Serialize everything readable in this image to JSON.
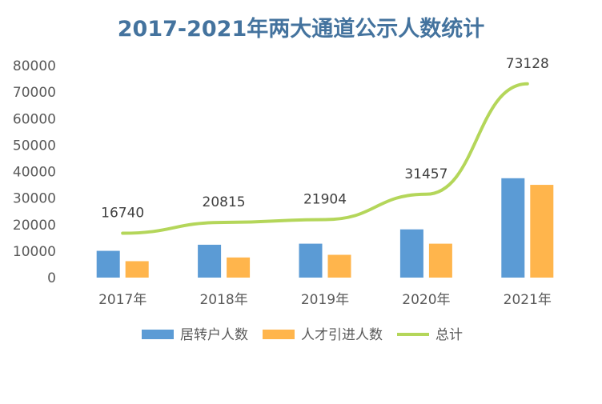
{
  "colors": {
    "title": "#44739e",
    "bar1": "#5b9bd5",
    "bar2": "#ffb54c",
    "line": "#b4d65a"
  },
  "chart_data": {
    "type": "bar",
    "title": "2017-2021年两大通道公示人数统计",
    "categories": [
      "2017年",
      "2018年",
      "2019年",
      "2020年",
      "2021年"
    ],
    "ylim": [
      0,
      80000
    ],
    "yticks": [
      0,
      10000,
      20000,
      30000,
      40000,
      50000,
      60000,
      70000,
      80000
    ],
    "grid": false,
    "legend_position": "bottom",
    "series": [
      {
        "name": "居转户人数",
        "type": "bar",
        "values": [
          10100,
          12400,
          12800,
          18200,
          37500
        ]
      },
      {
        "name": "人才引进人数",
        "type": "bar",
        "values": [
          6200,
          7600,
          8600,
          12800,
          35000
        ]
      },
      {
        "name": "总计",
        "type": "line",
        "values": [
          16740,
          20815,
          21904,
          31457,
          73128
        ],
        "data_labels": [
          "16740",
          "20815",
          "21904",
          "31457",
          "73128"
        ]
      }
    ]
  }
}
